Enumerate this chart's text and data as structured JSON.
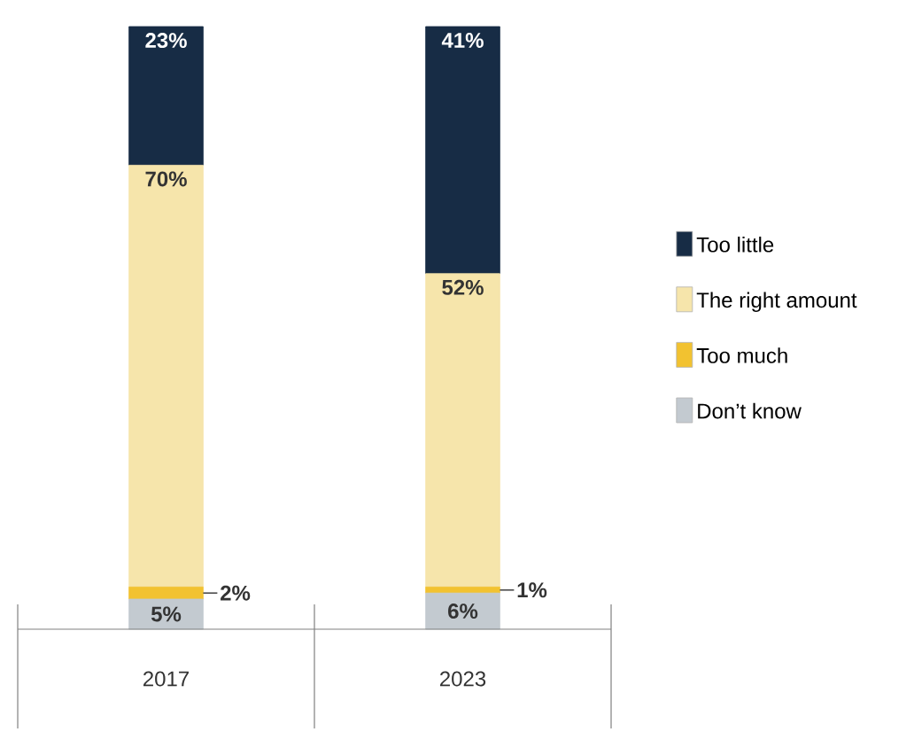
{
  "chart_data": {
    "type": "bar",
    "stacked": true,
    "categories": [
      "2017",
      "2023"
    ],
    "series": [
      {
        "name": "Don’t know",
        "color": "#c3cad0",
        "values": [
          5,
          6
        ],
        "value_labels": [
          "5%",
          "6%"
        ]
      },
      {
        "name": "Too much",
        "color": "#f2c230",
        "values": [
          2,
          1
        ],
        "value_labels": [
          "2%",
          "1%"
        ]
      },
      {
        "name": "The right amount",
        "color": "#f6e5ab",
        "values": [
          70,
          52
        ],
        "value_labels": [
          "70%",
          "52%"
        ]
      },
      {
        "name": "Too little",
        "color": "#172c45",
        "values": [
          23,
          41
        ],
        "value_labels": [
          "23%",
          "41%"
        ]
      }
    ],
    "legend": "right",
    "tick_labels": "x"
  }
}
